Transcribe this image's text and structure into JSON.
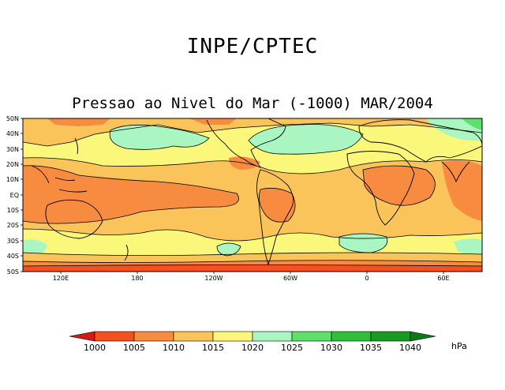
{
  "header": {
    "org": "INPE/CPTEC",
    "title": "Pressao ao Nivel do Mar (-1000) MAR/2004"
  },
  "map": {
    "lat_labels": [
      "50N",
      "40N",
      "30N",
      "20N",
      "10N",
      "EQ",
      "10S",
      "20S",
      "30S",
      "40S",
      "50S"
    ],
    "lon_labels": [
      "120E",
      "180",
      "120W",
      "60W",
      "0",
      "60E"
    ],
    "colors": {
      "below_1000": "#e8231a",
      "1000_1005": "#f65020",
      "1005_1010": "#f78b40",
      "1010_1015": "#fbc45a",
      "1015_1020": "#fbf77a",
      "1020_1025": "#a9f6c2",
      "1025_1030": "#5ee06a",
      "1030_1035": "#2fbf3a",
      "1035_1040": "#1a9a22",
      "above_1040": "#0d7a16"
    }
  },
  "colorbar": {
    "levels": [
      "1000",
      "1005",
      "1010",
      "1015",
      "1020",
      "1025",
      "1030",
      "1035",
      "1040"
    ],
    "unit": "hPa",
    "colors": [
      "#d41c17",
      "#f65020",
      "#f78b40",
      "#fbc45a",
      "#fbf77a",
      "#a9f6c2",
      "#5ee06a",
      "#2fbf3a",
      "#1a9a22",
      "#0d7a16"
    ]
  }
}
